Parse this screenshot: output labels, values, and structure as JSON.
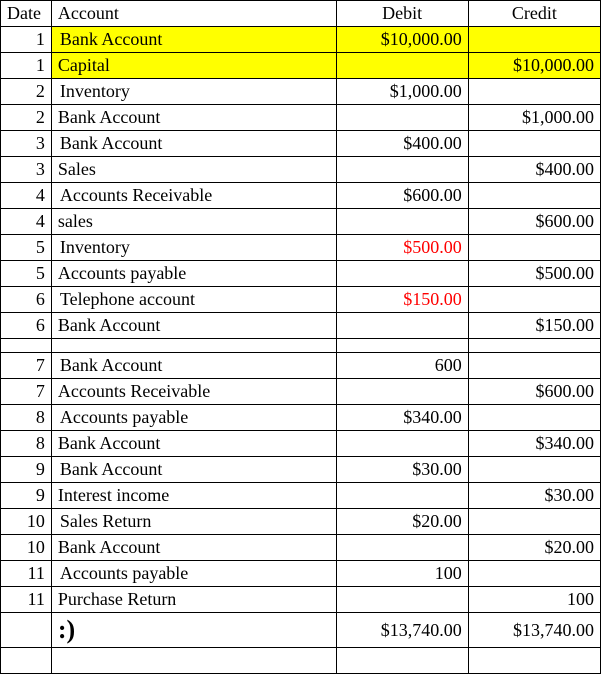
{
  "table": {
    "headers": {
      "date": "Date",
      "account": "Account",
      "debit": "Debit",
      "credit": "Credit"
    },
    "rows": [
      {
        "date": "1",
        "account": "Bank Account",
        "debit": "$10,000.00",
        "credit": "",
        "highlight": true,
        "indent": true,
        "red": false
      },
      {
        "date": "1",
        "account": "Capital",
        "debit": "",
        "credit": "$10,000.00",
        "highlight": true,
        "indent": false,
        "red": false
      },
      {
        "date": "2",
        "account": "Inventory",
        "debit": "$1,000.00",
        "credit": "",
        "highlight": false,
        "indent": true,
        "red": false
      },
      {
        "date": "2",
        "account": "Bank Account",
        "debit": "",
        "credit": "$1,000.00",
        "highlight": false,
        "indent": false,
        "red": false
      },
      {
        "date": "3",
        "account": "Bank Account",
        "debit": "$400.00",
        "credit": "",
        "highlight": false,
        "indent": true,
        "red": false
      },
      {
        "date": "3",
        "account": "Sales",
        "debit": "",
        "credit": "$400.00",
        "highlight": false,
        "indent": false,
        "red": false
      },
      {
        "date": "4",
        "account": "Accounts Receivable",
        "debit": "$600.00",
        "credit": "",
        "highlight": false,
        "indent": true,
        "red": false
      },
      {
        "date": "4",
        "account": "sales",
        "debit": "",
        "credit": "$600.00",
        "highlight": false,
        "indent": false,
        "red": false
      },
      {
        "date": "5",
        "account": "Inventory",
        "debit": "$500.00",
        "credit": "",
        "highlight": false,
        "indent": true,
        "red": true
      },
      {
        "date": "5",
        "account": "Accounts payable",
        "debit": "",
        "credit": "$500.00",
        "highlight": false,
        "indent": false,
        "red": false
      },
      {
        "date": "6",
        "account": "Telephone account",
        "debit": "$150.00",
        "credit": "",
        "highlight": false,
        "indent": true,
        "red": true
      },
      {
        "date": "6",
        "account": "Bank Account",
        "debit": "",
        "credit": "$150.00",
        "highlight": false,
        "indent": false,
        "red": false
      },
      {
        "spacer": true
      },
      {
        "date": "7",
        "account": "Bank Account",
        "debit": "600",
        "credit": "",
        "highlight": false,
        "indent": true,
        "red": false
      },
      {
        "date": "7",
        "account": "Accounts Receivable",
        "debit": "",
        "credit": "$600.00",
        "highlight": false,
        "indent": false,
        "red": false
      },
      {
        "date": "8",
        "account": "Accounts payable",
        "debit": "$340.00",
        "credit": "",
        "highlight": false,
        "indent": true,
        "red": false
      },
      {
        "date": "8",
        "account": "Bank Account",
        "debit": "",
        "credit": "$340.00",
        "highlight": false,
        "indent": false,
        "red": false
      },
      {
        "date": "9",
        "account": "Bank Account",
        "debit": "$30.00",
        "credit": "",
        "highlight": false,
        "indent": true,
        "red": false
      },
      {
        "date": "9",
        "account": "Interest income",
        "debit": "",
        "credit": "$30.00",
        "highlight": false,
        "indent": false,
        "red": false
      },
      {
        "date": "10",
        "account": "Sales Return",
        "debit": "$20.00",
        "credit": "",
        "highlight": false,
        "indent": true,
        "red": false
      },
      {
        "date": "10",
        "account": "Bank Account",
        "debit": "",
        "credit": "$20.00",
        "highlight": false,
        "indent": false,
        "red": false
      },
      {
        "date": "11",
        "account": "Accounts payable",
        "debit": "100",
        "credit": "",
        "highlight": false,
        "indent": true,
        "red": false
      },
      {
        "date": "11",
        "account": "Purchase Return",
        "debit": "",
        "credit": "100",
        "highlight": false,
        "indent": false,
        "red": false
      }
    ],
    "total": {
      "smiley": ":)",
      "debit": "$13,740.00",
      "credit": "$13,740.00"
    }
  },
  "colors": {
    "highlight_bg": "#ffff00",
    "red_text": "#ff0000",
    "border": "#000000",
    "background": "#ffffff",
    "text": "#000000"
  },
  "typography": {
    "font_family": "Times New Roman",
    "base_fontsize": 18,
    "smiley_fontsize": 26
  }
}
